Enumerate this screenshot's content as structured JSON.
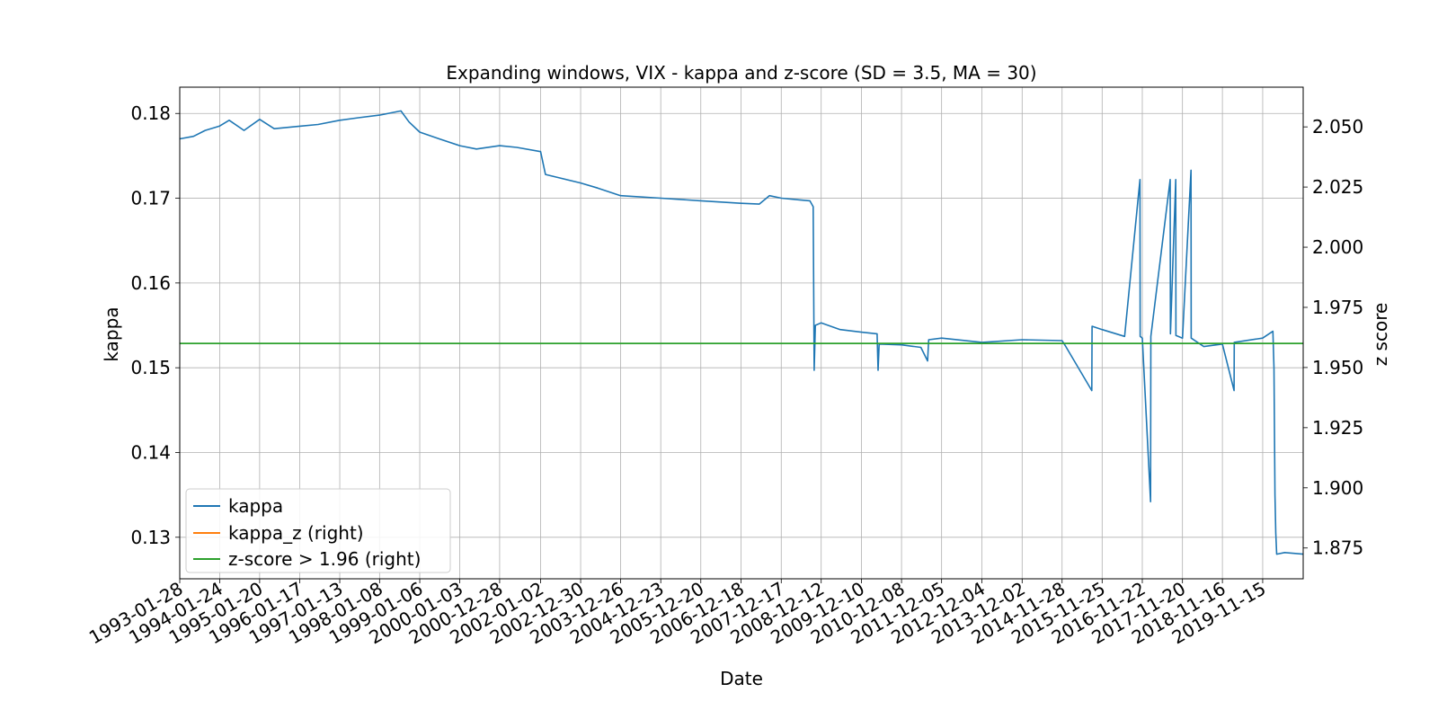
{
  "chart_data": {
    "type": "line",
    "title": "Expanding windows, VIX - kappa and z-score (SD = 3.5, MA = 30)",
    "xlabel": "Date",
    "ylabel": "kappa",
    "ylabel_right": "z score",
    "x_ticks": [
      "1993-01-28",
      "1994-01-24",
      "1995-01-20",
      "1996-01-17",
      "1997-01-13",
      "1998-01-08",
      "1999-01-06",
      "2000-01-03",
      "2000-12-28",
      "2002-01-02",
      "2002-12-30",
      "2003-12-26",
      "2004-12-23",
      "2005-12-20",
      "2006-12-18",
      "2007-12-17",
      "2008-12-12",
      "2009-12-10",
      "2010-12-08",
      "2011-12-05",
      "2012-12-04",
      "2013-12-02",
      "2014-11-28",
      "2015-11-25",
      "2016-11-22",
      "2017-11-20",
      "2018-11-16",
      "2019-11-15"
    ],
    "xlim": [
      "1993-01-28",
      "2020-11-15"
    ],
    "ylim": [
      0.1251,
      0.1831
    ],
    "ylim_right": [
      1.8622,
      2.0665
    ],
    "y_ticks": [
      "0.13",
      "0.14",
      "0.15",
      "0.16",
      "0.17",
      "0.18"
    ],
    "y_ticks_right": [
      "1.875",
      "1.900",
      "1.925",
      "1.950",
      "1.975",
      "2.000",
      "2.025",
      "2.050"
    ],
    "grid": true,
    "legend_position": "lower-left",
    "colors": {
      "kappa": "#1f77b4",
      "kappa_z": "#ff7f0e",
      "threshold": "#2ca02c"
    },
    "series": [
      {
        "name": "kappa",
        "axis": "left",
        "points": [
          [
            "1993-01-28",
            0.177
          ],
          [
            "1993-06-01",
            0.1773
          ],
          [
            "1993-09-15",
            0.178
          ],
          [
            "1994-01-20",
            0.1785
          ],
          [
            "1994-04-20",
            0.1792
          ],
          [
            "1994-09-01",
            0.178
          ],
          [
            "1995-01-20",
            0.1793
          ],
          [
            "1995-06-01",
            0.1782
          ],
          [
            "1996-01-17",
            0.1785
          ],
          [
            "1996-07-01",
            0.1787
          ],
          [
            "1997-01-13",
            0.1792
          ],
          [
            "1997-07-01",
            0.1795
          ],
          [
            "1998-01-08",
            0.1798
          ],
          [
            "1998-07-20",
            0.1803
          ],
          [
            "1998-10-01",
            0.179
          ],
          [
            "1999-01-06",
            0.1778
          ],
          [
            "1999-07-01",
            0.177
          ],
          [
            "2000-01-03",
            0.1762
          ],
          [
            "2000-06-01",
            0.1758
          ],
          [
            "2000-12-28",
            0.1762
          ],
          [
            "2001-06-01",
            0.176
          ],
          [
            "2002-01-02",
            0.1755
          ],
          [
            "2002-02-15",
            0.1728
          ],
          [
            "2002-12-30",
            0.1718
          ],
          [
            "2003-06-01",
            0.1712
          ],
          [
            "2003-12-26",
            0.1703
          ],
          [
            "2004-12-23",
            0.17
          ],
          [
            "2005-12-20",
            0.1697
          ],
          [
            "2006-12-18",
            0.1694
          ],
          [
            "2007-06-01",
            0.1693
          ],
          [
            "2007-09-01",
            0.1703
          ],
          [
            "2007-12-17",
            0.17
          ],
          [
            "2008-06-01",
            0.1698
          ],
          [
            "2008-09-01",
            0.1697
          ],
          [
            "2008-10-01",
            0.169
          ],
          [
            "2008-10-10",
            0.1497
          ],
          [
            "2008-10-20",
            0.155
          ],
          [
            "2008-12-12",
            0.1553
          ],
          [
            "2009-06-01",
            0.1545
          ],
          [
            "2009-12-10",
            0.1542
          ],
          [
            "2010-05-01",
            0.154
          ],
          [
            "2010-05-10",
            0.1497
          ],
          [
            "2010-05-20",
            0.1528
          ],
          [
            "2010-12-08",
            0.1527
          ],
          [
            "2011-06-01",
            0.1524
          ],
          [
            "2011-08-01",
            0.1508
          ],
          [
            "2011-08-10",
            0.1533
          ],
          [
            "2011-12-05",
            0.1535
          ],
          [
            "2012-12-04",
            0.153
          ],
          [
            "2013-12-02",
            0.1533
          ],
          [
            "2014-11-28",
            0.1532
          ],
          [
            "2015-01-01",
            0.1525
          ],
          [
            "2015-08-24",
            0.1473
          ],
          [
            "2015-08-26",
            0.1549
          ],
          [
            "2015-11-25",
            0.1545
          ],
          [
            "2016-06-15",
            0.1537
          ],
          [
            "2016-11-01",
            0.1722
          ],
          [
            "2016-11-03",
            0.1537
          ],
          [
            "2016-11-22",
            0.1535
          ],
          [
            "2017-02-05",
            0.1342
          ],
          [
            "2017-02-07",
            0.1537
          ],
          [
            "2017-08-01",
            0.1722
          ],
          [
            "2017-08-03",
            0.154
          ],
          [
            "2017-09-20",
            0.1722
          ],
          [
            "2017-09-22",
            0.1538
          ],
          [
            "2017-11-20",
            0.1535
          ],
          [
            "2018-02-05",
            0.1733
          ],
          [
            "2018-02-07",
            0.1535
          ],
          [
            "2018-06-01",
            0.1525
          ],
          [
            "2018-11-16",
            0.1528
          ],
          [
            "2019-03-01",
            0.1473
          ],
          [
            "2019-03-03",
            0.153
          ],
          [
            "2019-11-15",
            0.1535
          ],
          [
            "2020-02-15",
            0.1543
          ],
          [
            "2020-02-25",
            0.15
          ],
          [
            "2020-03-05",
            0.135
          ],
          [
            "2020-03-12",
            0.1305
          ],
          [
            "2020-03-20",
            0.128
          ],
          [
            "2020-06-01",
            0.1282
          ],
          [
            "2020-11-15",
            0.128
          ]
        ]
      },
      {
        "name": "kappa_z (right)",
        "axis": "right",
        "points": []
      },
      {
        "name": "z-score > 1.96 (right)",
        "axis": "right",
        "constant": 1.96
      }
    ]
  }
}
